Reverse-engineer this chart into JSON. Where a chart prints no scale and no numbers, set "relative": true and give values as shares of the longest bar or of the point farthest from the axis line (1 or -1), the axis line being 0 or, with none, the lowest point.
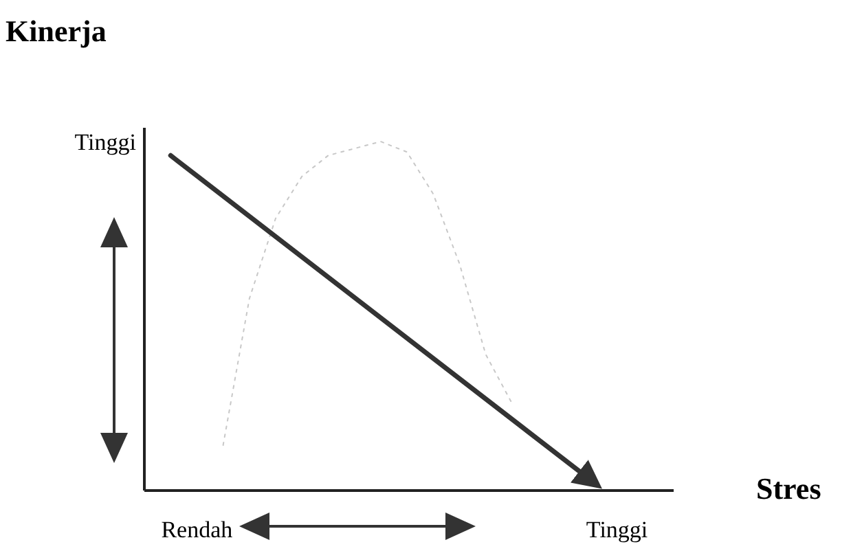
{
  "chart_data": {
    "type": "line",
    "ylabel": "Kinerja",
    "xlabel": "Stres",
    "relative": true,
    "categories": [
      null,
      null,
      "Rendah",
      null,
      null,
      null,
      null,
      null,
      null,
      null,
      null,
      null,
      null,
      null,
      null,
      null,
      null,
      null,
      "Tinggi",
      null,
      null
    ],
    "annotations": [
      "Tinggi"
    ],
    "grid": false,
    "marker": "none",
    "series": [
      {
        "color": "#c8c8c8",
        "line_style": "dotted",
        "values": [
          null,
          null,
          null,
          0.13,
          0.55,
          0.78,
          0.9,
          0.96,
          0.98,
          1,
          0.97,
          0.85,
          0.65,
          0.39,
          0.25,
          null,
          null,
          null,
          null,
          null,
          null
        ]
      },
      {
        "color": "#333333",
        "line_style": "solid",
        "values": [
          null,
          0.96,
          null,
          null,
          null,
          null,
          null,
          null,
          null,
          null,
          null,
          null,
          null,
          null,
          null,
          null,
          null,
          0.03,
          null,
          null,
          null
        ]
      }
    ]
  }
}
